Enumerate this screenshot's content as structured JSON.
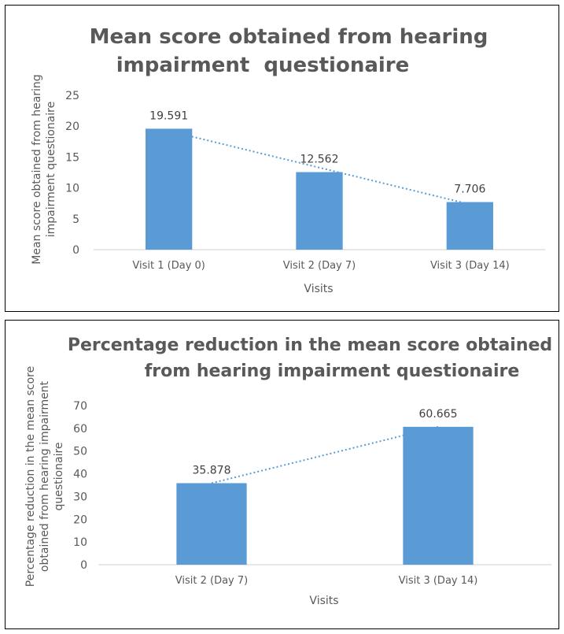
{
  "chart_data": [
    {
      "type": "bar",
      "title_lines": [
        "Mean score obtained from hearing",
        "impairment  questionaire"
      ],
      "categories": [
        "Visit 1 (Day 0)",
        "Visit 2 (Day 7)",
        "Visit 3 (Day 14)"
      ],
      "values": [
        19.591,
        12.562,
        7.706
      ],
      "value_labels": [
        "19.591",
        "12.562",
        "7.706"
      ],
      "xlabel": "Visits",
      "ylabel_lines": [
        "Mean score obtained from hearing",
        "impairment questionaire"
      ],
      "yticks": [
        0,
        5,
        10,
        15,
        20,
        25
      ],
      "ylim": [
        0,
        25
      ],
      "trendline": "linear dotted",
      "bar_color": "#5b9bd5"
    },
    {
      "type": "bar",
      "title_lines": [
        "Percentage reduction in the mean score obtained",
        "from hearing impairment questionaire"
      ],
      "categories": [
        "Visit 2 (Day 7)",
        "Visit 3 (Day 14)"
      ],
      "values": [
        35.878,
        60.665
      ],
      "value_labels": [
        "35.878",
        "60.665"
      ],
      "xlabel": "Visits",
      "ylabel_lines": [
        "Percentage reduction in the mean score",
        "obtained from hearing impairment",
        "questionaire"
      ],
      "yticks": [
        0,
        10,
        20,
        30,
        40,
        50,
        60,
        70
      ],
      "ylim": [
        0,
        70
      ],
      "trendline": "linear dotted",
      "bar_color": "#5b9bd5"
    }
  ]
}
